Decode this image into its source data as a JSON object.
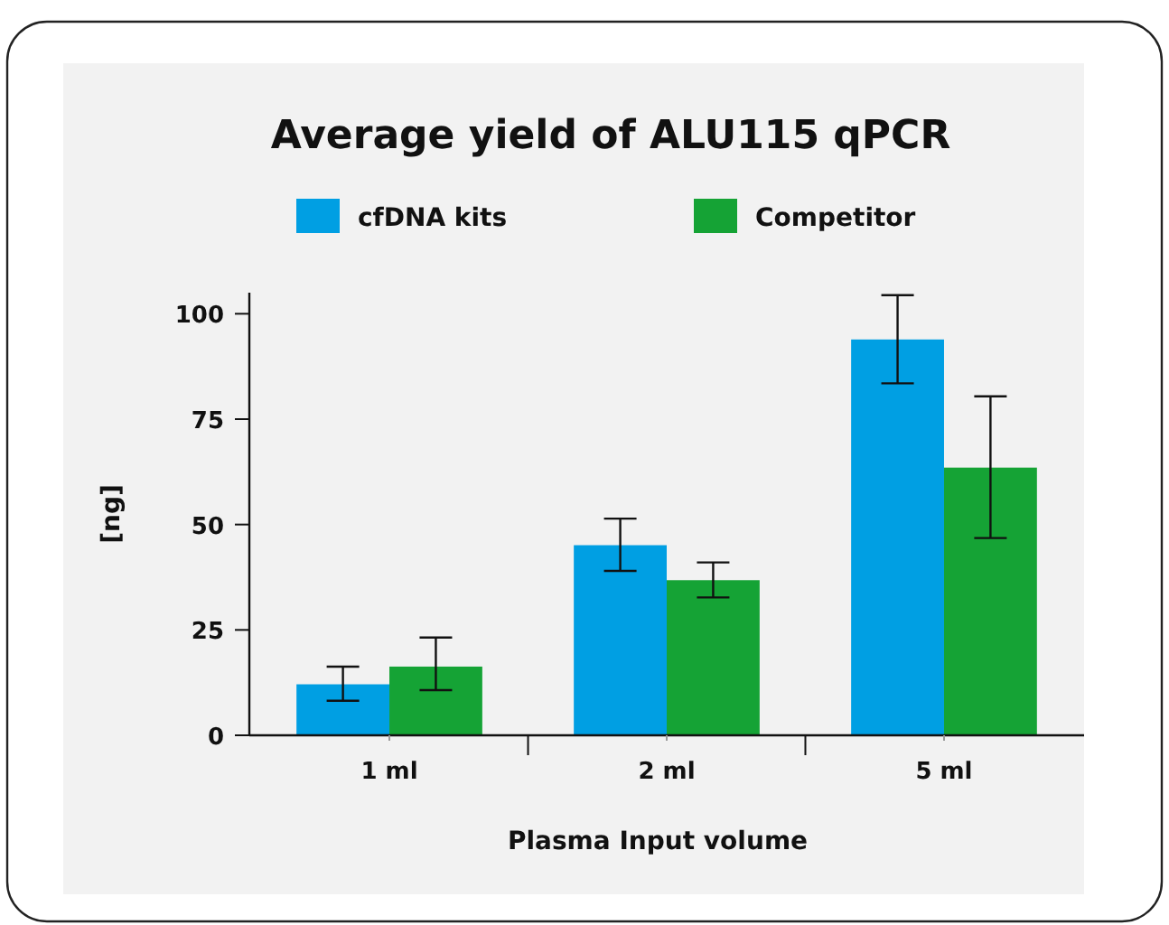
{
  "chart_data": {
    "type": "bar",
    "title": "Average yield of ALU115 qPCR",
    "xlabel": "Plasma Input volume",
    "ylabel": "[ng]",
    "categories": [
      "1 ml",
      "2 ml",
      "5 ml"
    ],
    "series": [
      {
        "name": "cfDNA kits",
        "color": "#009fe3",
        "values": [
          12.1,
          45.1,
          93.9
        ],
        "errors": [
          [
            8.2,
            16.3
          ],
          [
            39.0,
            51.4
          ],
          [
            83.5,
            104.4
          ]
        ]
      },
      {
        "name": "Competitor",
        "color": "#15a335",
        "values": [
          16.3,
          36.8,
          63.5
        ],
        "errors": [
          [
            10.7,
            23.2
          ],
          [
            32.7,
            41.0
          ],
          [
            46.8,
            80.4
          ]
        ]
      }
    ],
    "ylim": [
      0,
      105
    ],
    "yticks": [
      0,
      25,
      50,
      75,
      100
    ],
    "grid": false,
    "legend": "top"
  }
}
